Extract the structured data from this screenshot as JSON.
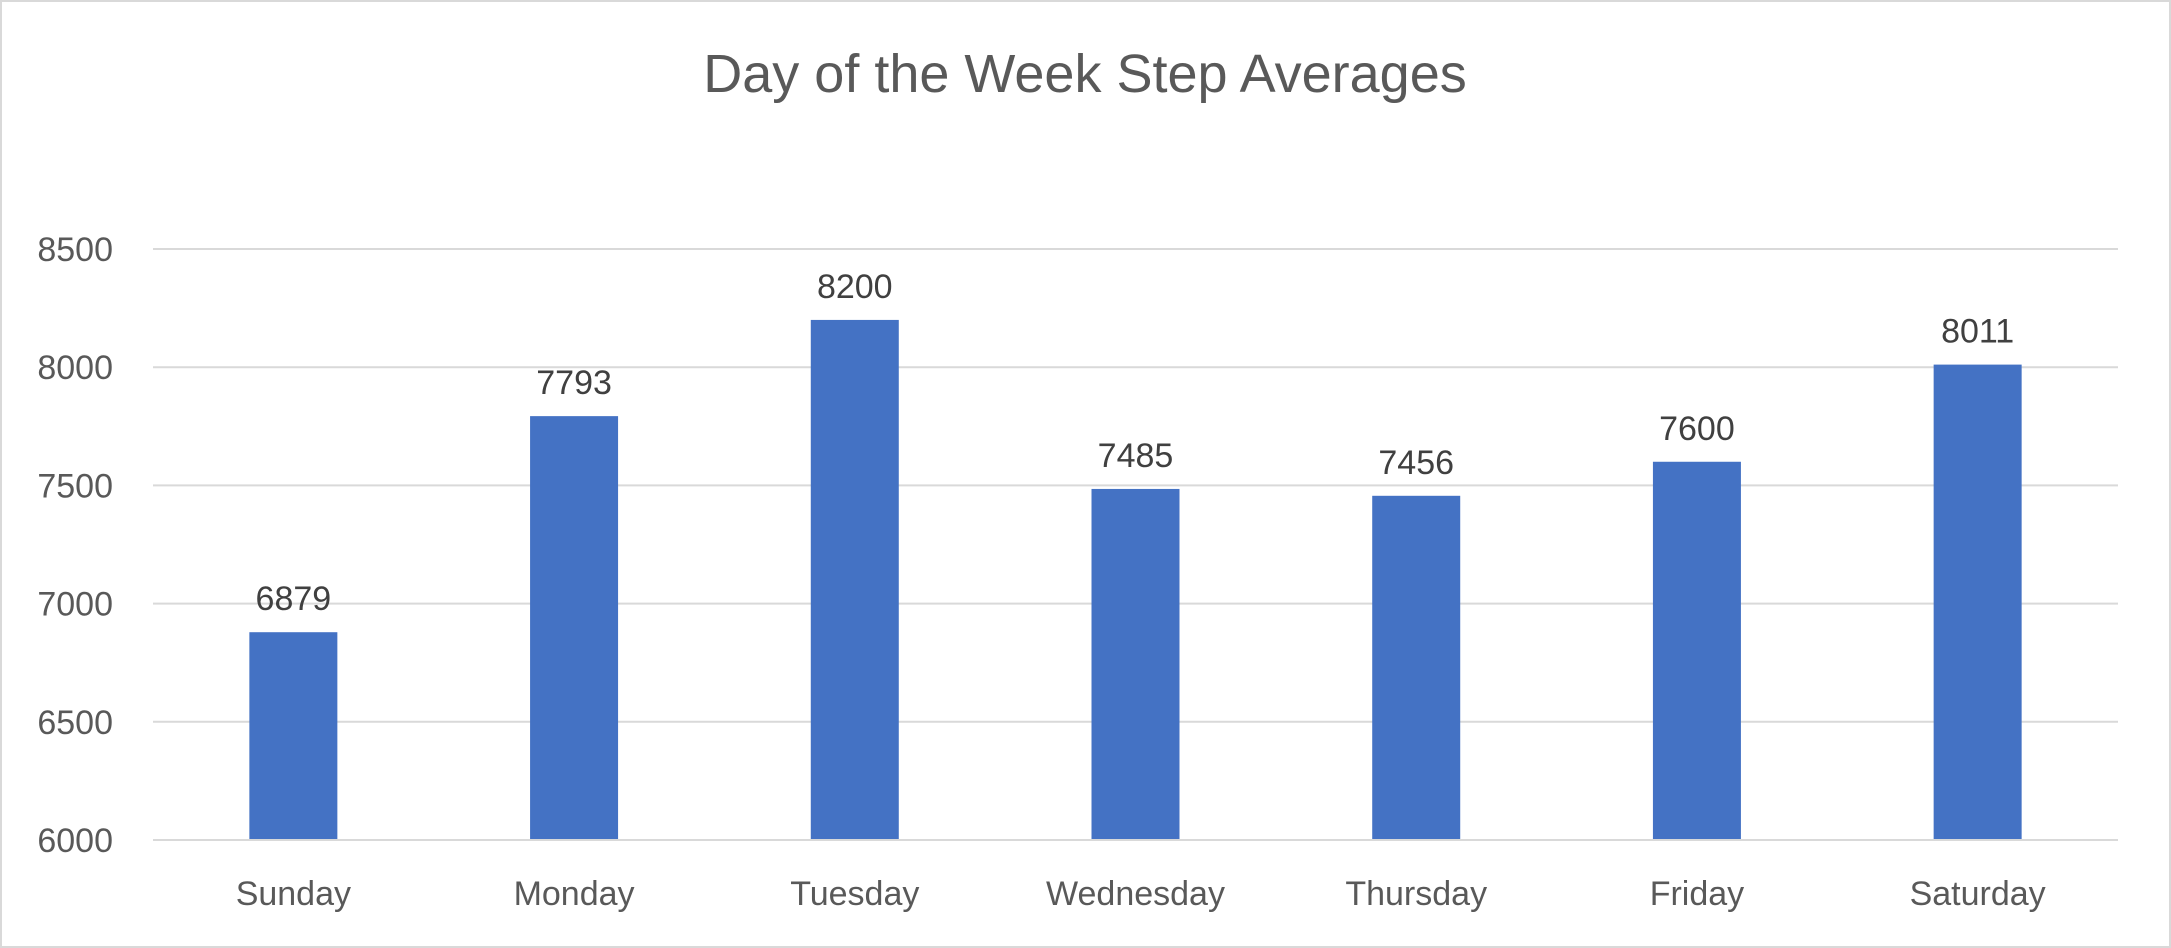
{
  "chart_data": {
    "type": "bar",
    "title": "Day of the Week Step Averages",
    "xlabel": "",
    "ylabel": "",
    "categories": [
      "Sunday",
      "Monday",
      "Tuesday",
      "Wednesday",
      "Thursday",
      "Friday",
      "Saturday"
    ],
    "series": [
      {
        "values": [
          6879,
          7793,
          8200,
          7485,
          7456,
          7600,
          8011
        ]
      }
    ],
    "ylim": [
      6000,
      8500
    ],
    "yticks": [
      6000,
      6500,
      7000,
      7500,
      8000,
      8500
    ],
    "grid": true,
    "legend": "none",
    "data_labels": true,
    "colors": {
      "bar": "#4472c4",
      "grid": "#d9d9d9",
      "text": "#595959"
    }
  }
}
